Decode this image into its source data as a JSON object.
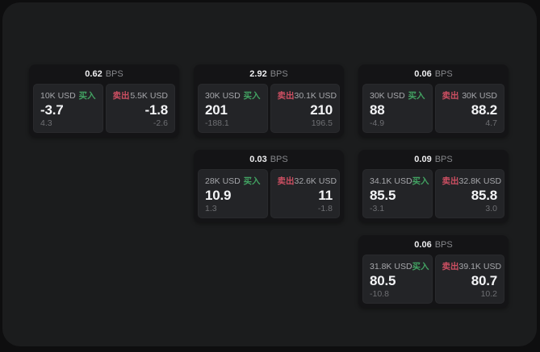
{
  "labels": {
    "buy": "买入",
    "sell": "卖出",
    "unit": "BPS"
  },
  "colors": {
    "buy": "#42a262",
    "sell": "#cd4f62",
    "panel_bg": "#1b1c1d",
    "card_bg": "#141416",
    "quote_bg": "#232427"
  },
  "cards": [
    {
      "bps": "0.62",
      "col": 1,
      "row": 1,
      "buy": {
        "amount": "10K USD",
        "value": "-3.7",
        "delta": "4.3"
      },
      "sell": {
        "amount": "5.5K USD",
        "value": "-1.8",
        "delta": "-2.6"
      }
    },
    {
      "bps": "2.92",
      "col": 2,
      "row": 1,
      "buy": {
        "amount": "30K USD",
        "value": "201",
        "delta": "-188.1"
      },
      "sell": {
        "amount": "30.1K USD",
        "value": "210",
        "delta": "196.5"
      }
    },
    {
      "bps": "0.06",
      "col": 3,
      "row": 1,
      "buy": {
        "amount": "30K USD",
        "value": "88",
        "delta": "-4.9"
      },
      "sell": {
        "amount": "30K USD",
        "value": "88.2",
        "delta": "4.7"
      }
    },
    {
      "bps": "0.03",
      "col": 2,
      "row": 2,
      "buy": {
        "amount": "28K USD",
        "value": "10.9",
        "delta": "1.3"
      },
      "sell": {
        "amount": "32.6K USD",
        "value": "11",
        "delta": "-1.8"
      }
    },
    {
      "bps": "0.09",
      "col": 3,
      "row": 2,
      "buy": {
        "amount": "34.1K USD",
        "value": "85.5",
        "delta": "-3.1"
      },
      "sell": {
        "amount": "32.8K USD",
        "value": "85.8",
        "delta": "3.0"
      }
    },
    {
      "bps": "0.06",
      "col": 3,
      "row": 3,
      "buy": {
        "amount": "31.8K USD",
        "value": "80.5",
        "delta": "-10.8"
      },
      "sell": {
        "amount": "39.1K USD",
        "value": "80.7",
        "delta": "10.2"
      }
    }
  ]
}
